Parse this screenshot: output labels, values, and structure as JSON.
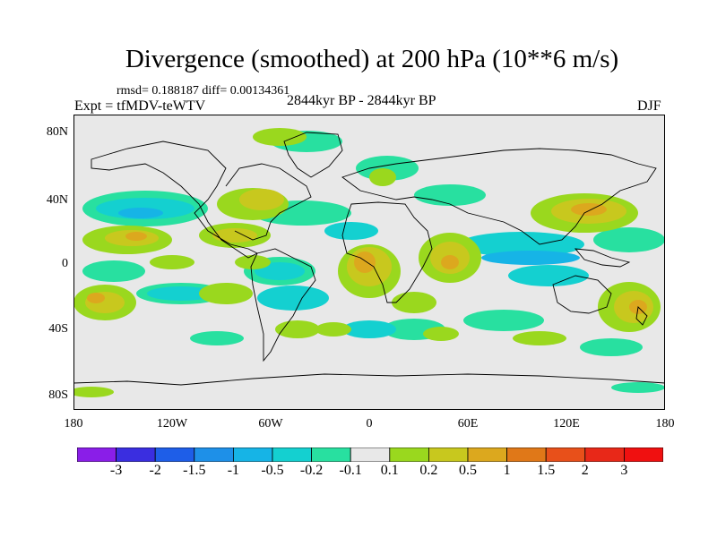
{
  "title": "Divergence (smoothed) at 200 hPa (10**6 m/s)",
  "stats": "rmsd= 0.188187 diff= 0.00134361",
  "experiment": "Expt = tfMDV-teWTV",
  "period": "2844kyr BP - 2844kyr BP",
  "season": "DJF",
  "lat_labels": [
    "80N",
    "40N",
    "0",
    "40S",
    "80S"
  ],
  "lon_labels": [
    "180",
    "120W",
    "60W",
    "0",
    "60E",
    "120E",
    "180"
  ],
  "colorbar": {
    "labels": [
      "-3",
      "-2",
      "-1.5",
      "-1",
      "-0.5",
      "-0.2",
      "-0.1",
      "0.1",
      "0.2",
      "0.5",
      "1",
      "1.5",
      "2",
      "3"
    ],
    "colors": [
      "#8a1ee8",
      "#3a2ee0",
      "#1e5ee8",
      "#1e90e8",
      "#16b4e6",
      "#14d0d0",
      "#28e0a0",
      "#e8e8e8",
      "#9ad81e",
      "#c8c81e",
      "#dca81e",
      "#e07818",
      "#e8501a",
      "#e82818",
      "#f01010"
    ]
  },
  "colors": {
    "background": "#e8e8e8",
    "coast": "#000000"
  }
}
